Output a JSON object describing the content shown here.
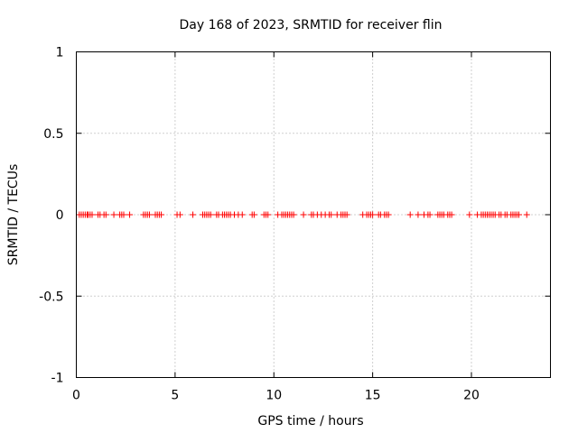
{
  "chart_data": {
    "type": "scatter",
    "title": "Day 168 of 2023, SRMTID for receiver flin",
    "xlabel": "GPS time / hours",
    "ylabel": "SRMTID / TECUs",
    "xlim": [
      0,
      24
    ],
    "ylim": [
      -1,
      1
    ],
    "xticks": [
      0,
      5,
      10,
      15,
      20
    ],
    "xtick_labels": [
      "0",
      "5",
      "10",
      "15",
      "20"
    ],
    "yticks": [
      1,
      0.5,
      0,
      -0.5,
      -1
    ],
    "ytick_labels": [
      "1",
      "0.5",
      "0",
      "-0.5",
      "-1"
    ],
    "grid": true,
    "marker": "+",
    "series": [
      {
        "name": "SRMTID",
        "color": "#ff0000",
        "x": [
          0.15,
          0.25,
          0.35,
          0.45,
          0.55,
          0.6,
          0.7,
          0.8,
          1.1,
          1.2,
          1.4,
          1.5,
          1.9,
          2.2,
          2.3,
          2.4,
          2.7,
          3.4,
          3.5,
          3.6,
          3.7,
          4.0,
          4.1,
          4.2,
          4.3,
          5.1,
          5.25,
          5.9,
          6.4,
          6.5,
          6.6,
          6.7,
          6.8,
          7.1,
          7.2,
          7.4,
          7.5,
          7.6,
          7.7,
          7.8,
          8.0,
          8.2,
          8.4,
          8.9,
          9.0,
          9.5,
          9.6,
          9.7,
          10.2,
          10.4,
          10.5,
          10.6,
          10.7,
          10.8,
          10.9,
          11.0,
          11.5,
          11.9,
          12.0,
          12.2,
          12.4,
          12.6,
          12.8,
          12.9,
          13.2,
          13.4,
          13.5,
          13.6,
          13.7,
          14.5,
          14.7,
          14.8,
          14.9,
          15.0,
          15.3,
          15.4,
          15.6,
          15.7,
          15.8,
          16.9,
          17.3,
          17.6,
          17.8,
          17.9,
          18.3,
          18.4,
          18.5,
          18.6,
          18.8,
          18.9,
          19.0,
          19.9,
          20.3,
          20.5,
          20.6,
          20.7,
          20.8,
          20.9,
          21.0,
          21.1,
          21.2,
          21.4,
          21.5,
          21.7,
          21.8,
          22.0,
          22.1,
          22.2,
          22.3,
          22.4,
          22.8
        ],
        "y": [
          0,
          0,
          0,
          0,
          0,
          0,
          0,
          0,
          0,
          0,
          0,
          0,
          0,
          0,
          0,
          0,
          0,
          0,
          0,
          0,
          0,
          0,
          0,
          0,
          0,
          0,
          0,
          0,
          0,
          0,
          0,
          0,
          0,
          0,
          0,
          0,
          0,
          0,
          0,
          0,
          0,
          0,
          0,
          0,
          0,
          0,
          0,
          0,
          0,
          0,
          0,
          0,
          0,
          0,
          0,
          0,
          0,
          0,
          0,
          0,
          0,
          0,
          0,
          0,
          0,
          0,
          0,
          0,
          0,
          0,
          0,
          0,
          0,
          0,
          0,
          0,
          0,
          0,
          0,
          0,
          0,
          0,
          0,
          0,
          0,
          0,
          0,
          0,
          0,
          0,
          0,
          0,
          0,
          0,
          0,
          0,
          0,
          0,
          0,
          0,
          0,
          0,
          0,
          0,
          0,
          0,
          0,
          0,
          0,
          0,
          0
        ]
      }
    ]
  }
}
